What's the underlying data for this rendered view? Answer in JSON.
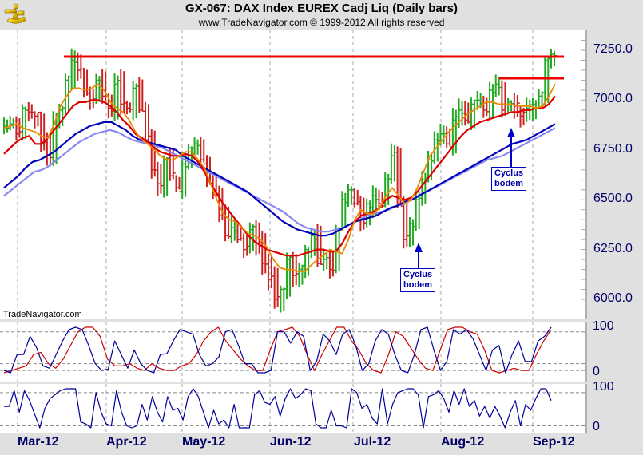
{
  "header": {
    "title": "GX-067:  DAX Index EUREX Cadj Liq  (Daily bars)",
    "subtitle": "www.TradeNavigator.com © 1999-2012 All rights reserved",
    "logo": "sextant-icon"
  },
  "watermark": "TradeNavigator.com",
  "colors": {
    "up_bar": "#22aa22",
    "down_bar": "#cc2222",
    "ma_fast": "#ee8800",
    "ma_mid": "#dd0000",
    "ma_slow": "#0000bb",
    "ma_slowest": "#8888ee",
    "resistance": "#ee0000",
    "osc_fast": "#000099",
    "osc_slow": "#cc0000",
    "axis_text": "#000066",
    "panel_bg": "#e0e0e0"
  },
  "annotations": [
    {
      "label_line1": "Cyclus",
      "label_line2": "bodem",
      "arrow": "up"
    },
    {
      "label_line1": "Cyclus",
      "label_line2": "bodem",
      "arrow": "up"
    }
  ],
  "chart_data": [
    {
      "type": "line",
      "title": "GX-067: DAX Index EUREX Cadj Liq (Daily bars)",
      "subtitle": "OHLC daily bars with moving averages",
      "xlabel": "",
      "ylabel": "",
      "ylim": [
        5950,
        7300
      ],
      "yticks": [
        "7250.0",
        "7000.0",
        "6750.0",
        "6500.0",
        "6250.0",
        "6000.0"
      ],
      "xticks": [
        "Mar-12",
        "Apr-12",
        "May-12",
        "Jun-12",
        "Jul-12",
        "Aug-12",
        "Sep-12"
      ],
      "grid": "vertical dashed at month starts",
      "horizontal_lines": [
        {
          "name": "resistance-high",
          "value": 7220,
          "from": "Mar-12 peak",
          "to": "Sep-12"
        },
        {
          "name": "resistance-aug",
          "value": 7110,
          "from": "mid Aug-12",
          "to": "Sep-12"
        }
      ],
      "series_points": {
        "x_index_note": "approximate closes sampled roughly every 2 trading days",
        "close": [
          6870,
          6880,
          6830,
          6960,
          6940,
          6920,
          6800,
          6720,
          6880,
          6950,
          7100,
          7200,
          7150,
          7050,
          7000,
          7100,
          7020,
          6960,
          7080,
          6980,
          6960,
          7060,
          6950,
          6800,
          6650,
          6580,
          6700,
          6620,
          6560,
          6680,
          6760,
          6780,
          6700,
          6600,
          6520,
          6420,
          6320,
          6360,
          6300,
          6250,
          6350,
          6280,
          6180,
          6100,
          6000,
          6050,
          6200,
          6120,
          6150,
          6250,
          6320,
          6180,
          6200,
          6150,
          6350,
          6500,
          6550,
          6480,
          6400,
          6480,
          6520,
          6480,
          6600,
          6720,
          6480,
          6300,
          6380,
          6500,
          6600,
          6700,
          6800,
          6830,
          6780,
          6900,
          6950,
          6900,
          6980,
          7000,
          6950,
          7050,
          7080,
          6950,
          6990,
          6970,
          6920,
          6960,
          6980,
          7020,
          7200,
          7230
        ],
        "ma_fast": [
          6860,
          6870,
          6880,
          6860,
          6850,
          6840,
          6820,
          6810,
          6880,
          6970,
          7020,
          7060,
          7060,
          7050,
          7060,
          7080,
          7050,
          6990,
          6960,
          6940,
          6900,
          6840,
          6800,
          6780,
          6750,
          6720,
          6700,
          6700,
          6720,
          6740,
          6740,
          6700,
          6660,
          6580,
          6500,
          6430,
          6400,
          6390,
          6360,
          6330,
          6320,
          6300,
          6260,
          6200,
          6160,
          6150,
          6150,
          6140,
          6140,
          6170,
          6200,
          6220,
          6250,
          6240,
          6230,
          6300,
          6400,
          6450,
          6430,
          6430,
          6460,
          6520,
          6560,
          6520,
          6480,
          6500,
          6560,
          6640,
          6720,
          6760,
          6800,
          6840,
          6870,
          6900,
          6930,
          6950,
          6970,
          6990,
          6990,
          6980,
          6980,
          6980,
          6970,
          6970,
          6970,
          6960,
          6970,
          7020,
          7080
        ],
        "ma_mid": [
          6730,
          6760,
          6790,
          6810,
          6820,
          6780,
          6780,
          6810,
          6850,
          6890,
          6930,
          6970,
          6990,
          6990,
          7000,
          7000,
          6990,
          6970,
          6940,
          6900,
          6870,
          6830,
          6810,
          6790,
          6760,
          6740,
          6730,
          6720,
          6720,
          6730,
          6720,
          6690,
          6640,
          6580,
          6530,
          6480,
          6440,
          6400,
          6360,
          6320,
          6290,
          6270,
          6250,
          6240,
          6230,
          6220,
          6220,
          6220,
          6230,
          6240,
          6250,
          6250,
          6240,
          6240,
          6280,
          6340,
          6390,
          6420,
          6430,
          6440,
          6460,
          6500,
          6520,
          6510,
          6500,
          6510,
          6540,
          6580,
          6620,
          6660,
          6700,
          6740,
          6780,
          6820,
          6850,
          6870,
          6890,
          6900,
          6910,
          6920,
          6930,
          6940,
          6940,
          6950,
          6950,
          6960,
          6960,
          6980,
          7020
        ],
        "ma_slow": [
          6560,
          6590,
          6620,
          6660,
          6690,
          6700,
          6720,
          6740,
          6770,
          6800,
          6830,
          6850,
          6870,
          6880,
          6890,
          6890,
          6870,
          6850,
          6820,
          6800,
          6790,
          6780,
          6770,
          6760,
          6750,
          6720,
          6700,
          6680,
          6660,
          6640,
          6620,
          6600,
          6580,
          6560,
          6540,
          6510,
          6480,
          6450,
          6420,
          6390,
          6370,
          6350,
          6340,
          6330,
          6320,
          6320,
          6330,
          6350,
          6370,
          6390,
          6400,
          6410,
          6420,
          6440,
          6460,
          6470,
          6490,
          6500,
          6520,
          6540,
          6560,
          6580,
          6600,
          6620,
          6640,
          6660,
          6680,
          6700,
          6720,
          6740,
          6760,
          6780,
          6790,
          6800,
          6820,
          6840,
          6860,
          6880
        ],
        "ma_slowest": [
          6520,
          6550,
          6580,
          6610,
          6640,
          6650,
          6670,
          6700,
          6730,
          6760,
          6790,
          6810,
          6830,
          6840,
          6850,
          6840,
          6820,
          6800,
          6790,
          6780,
          6770,
          6760,
          6740,
          6720,
          6700,
          6680,
          6660,
          6640,
          6620,
          6600,
          6580,
          6560,
          6540,
          6520,
          6500,
          6480,
          6460,
          6440,
          6410,
          6380,
          6360,
          6350,
          6340,
          6340,
          6350,
          6360,
          6380,
          6400,
          6420,
          6430,
          6440,
          6450,
          6470,
          6480,
          6500,
          6520,
          6540,
          6560,
          6580,
          6600,
          6620,
          6640,
          6660,
          6680,
          6700,
          6710,
          6720,
          6740,
          6760,
          6780,
          6800,
          6820,
          6840,
          6860
        ]
      }
    },
    {
      "type": "line",
      "title": "Oscillator pane 1 (stochastic-style, two lines)",
      "ylim": [
        0,
        100
      ],
      "yticks": [
        "100",
        "0"
      ],
      "reference_lines": [
        90,
        20,
        5
      ],
      "series": [
        {
          "name": "fast",
          "color": "#000099",
          "values": [
            5,
            0,
            40,
            40,
            80,
            55,
            15,
            10,
            40,
            70,
            95,
            100,
            95,
            60,
            20,
            5,
            8,
            70,
            40,
            10,
            50,
            20,
            5,
            0,
            40,
            42,
            70,
            95,
            90,
            85,
            40,
            15,
            20,
            35,
            90,
            95,
            60,
            20,
            20,
            0,
            0,
            5,
            90,
            90,
            65,
            90,
            80,
            5,
            25,
            85,
            70,
            40,
            85,
            95,
            60,
            5,
            20,
            70,
            95,
            85,
            40,
            5,
            0,
            40,
            95,
            100,
            50,
            5,
            25,
            95,
            85,
            95,
            75,
            40,
            5,
            50,
            60,
            0,
            40,
            70,
            25,
            25,
            70,
            80,
            100
          ]
        },
        {
          "name": "slow",
          "color": "#cc0000",
          "values": [
            0,
            5,
            10,
            15,
            40,
            45,
            20,
            10,
            30,
            60,
            90,
            100,
            100,
            80,
            30,
            15,
            15,
            20,
            10,
            5,
            20,
            10,
            5,
            5,
            15,
            20,
            40,
            70,
            90,
            100,
            70,
            50,
            30,
            15,
            5,
            5,
            50,
            90,
            95,
            100,
            80,
            40,
            5,
            40,
            70,
            100,
            100,
            70,
            50,
            20,
            5,
            0,
            40,
            90,
            80,
            55,
            30,
            10,
            5,
            50,
            95,
            100,
            100,
            90,
            85,
            50,
            5,
            0,
            5,
            10,
            5,
            5,
            40,
            70,
            95
          ]
        }
      ]
    },
    {
      "type": "line",
      "title": "Oscillator pane 2 (single line)",
      "ylim": [
        0,
        100
      ],
      "yticks": [
        "100",
        "0"
      ],
      "reference_lines": [
        90,
        5
      ],
      "series": [
        {
          "name": "osc2",
          "color": "#000099",
          "values": [
            55,
            55,
            95,
            40,
            95,
            70,
            35,
            0,
            50,
            75,
            85,
            95,
            100,
            100,
            100,
            15,
            10,
            0,
            90,
            40,
            10,
            5,
            95,
            40,
            5,
            0,
            5,
            60,
            20,
            80,
            40,
            15,
            80,
            45,
            50,
            20,
            80,
            100,
            80,
            40,
            0,
            45,
            10,
            20,
            0,
            60,
            0,
            0,
            0,
            85,
            95,
            65,
            60,
            80,
            30,
            75,
            100,
            75,
            85,
            100,
            95,
            10,
            0,
            0,
            45,
            5,
            5,
            0,
            100,
            90,
            50,
            60,
            25,
            10,
            100,
            10,
            60,
            90,
            95,
            100,
            100,
            85,
            0,
            80,
            85,
            95,
            75,
            40,
            95,
            60,
            100,
            55,
            70,
            30,
            55,
            25,
            55,
            30,
            0,
            40,
            70,
            5,
            60,
            45,
            75,
            100,
            100,
            70
          ]
        }
      ]
    }
  ]
}
